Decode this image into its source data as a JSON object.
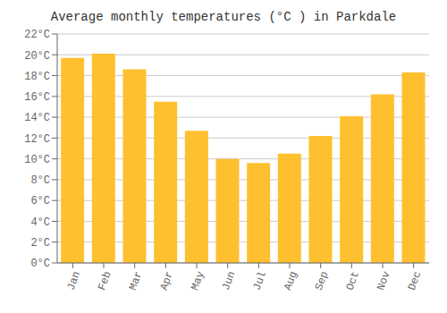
{
  "chart_data": {
    "type": "bar",
    "title": "Average monthly temperatures (°C ) in Parkdale",
    "categories": [
      "Jan",
      "Feb",
      "Mar",
      "Apr",
      "May",
      "Jun",
      "Jul",
      "Aug",
      "Sep",
      "Oct",
      "Nov",
      "Dec"
    ],
    "values": [
      19.7,
      20.1,
      18.6,
      15.5,
      12.7,
      10.0,
      9.6,
      10.5,
      12.2,
      14.1,
      16.2,
      18.3
    ],
    "color": "#FFC030",
    "ylim": [
      0,
      22
    ],
    "yticks": [
      {
        "value": 0,
        "label": "0°C"
      },
      {
        "value": 2,
        "label": "2°C"
      },
      {
        "value": 4,
        "label": "4°C"
      },
      {
        "value": 6,
        "label": "6°C"
      },
      {
        "value": 8,
        "label": "8°C"
      },
      {
        "value": 10,
        "label": "10°C"
      },
      {
        "value": 12,
        "label": "12°C"
      },
      {
        "value": 14,
        "label": "14°C"
      },
      {
        "value": 16,
        "label": "16°C"
      },
      {
        "value": 18,
        "label": "18°C"
      },
      {
        "value": 20,
        "label": "20°C"
      },
      {
        "value": 22,
        "label": "22°C"
      }
    ],
    "grid": true
  }
}
